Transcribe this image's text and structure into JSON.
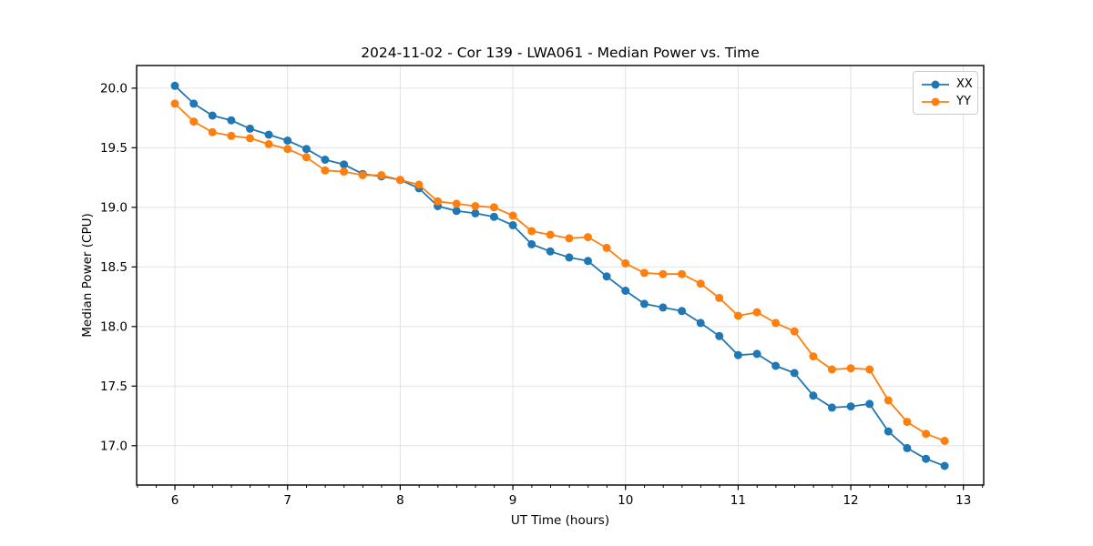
{
  "chart_data": {
    "type": "line",
    "title": "2024-11-02 - Cor 139 - LWA061 - Median Power vs. Time",
    "xlabel": "UT Time (hours)",
    "ylabel": "Median Power (CPU)",
    "xlim": [
      5.66,
      13.18
    ],
    "ylim": [
      16.67,
      20.19
    ],
    "x_major_ticks": [
      6,
      7,
      8,
      9,
      10,
      11,
      12,
      13
    ],
    "x_minor_tick_interval": 0.1667,
    "y_ticks": [
      17.0,
      17.5,
      18.0,
      18.5,
      19.0,
      19.5,
      20.0
    ],
    "grid": true,
    "legend_position": "upper right",
    "marker": "circle",
    "x": [
      6.0,
      6.167,
      6.333,
      6.5,
      6.667,
      6.833,
      7.0,
      7.167,
      7.333,
      7.5,
      7.667,
      7.833,
      8.0,
      8.167,
      8.333,
      8.5,
      8.667,
      8.833,
      9.0,
      9.167,
      9.333,
      9.5,
      9.667,
      9.833,
      10.0,
      10.167,
      10.333,
      10.5,
      10.667,
      10.833,
      11.0,
      11.167,
      11.333,
      11.5,
      11.667,
      11.833,
      12.0,
      12.167,
      12.333,
      12.5,
      12.667,
      12.833
    ],
    "series": [
      {
        "name": "XX",
        "color": "#1f77b4",
        "values": [
          20.02,
          19.87,
          19.77,
          19.73,
          19.66,
          19.61,
          19.56,
          19.49,
          19.4,
          19.36,
          19.28,
          19.26,
          19.23,
          19.16,
          19.01,
          18.97,
          18.95,
          18.92,
          18.85,
          18.69,
          18.63,
          18.58,
          18.55,
          18.42,
          18.3,
          18.19,
          18.16,
          18.13,
          18.03,
          17.92,
          17.76,
          17.77,
          17.67,
          17.61,
          17.42,
          17.32,
          17.33,
          17.35,
          17.12,
          16.98,
          16.89,
          16.83
        ]
      },
      {
        "name": "YY",
        "color": "#ff7f0e",
        "values": [
          19.87,
          19.72,
          19.63,
          19.6,
          19.58,
          19.53,
          19.49,
          19.42,
          19.31,
          19.3,
          19.27,
          19.27,
          19.23,
          19.19,
          19.05,
          19.03,
          19.01,
          19.0,
          18.93,
          18.8,
          18.77,
          18.74,
          18.75,
          18.66,
          18.53,
          18.45,
          18.44,
          18.44,
          18.36,
          18.24,
          18.09,
          18.12,
          18.03,
          17.96,
          17.75,
          17.64,
          17.65,
          17.64,
          17.38,
          17.2,
          17.1,
          17.04
        ]
      }
    ]
  },
  "colors": {
    "background": "#ffffff",
    "grid": "#e2e2e2",
    "spine": "#000000",
    "tick": "#000000",
    "text": "#000000",
    "series_xx": "#1f77b4",
    "series_yy": "#ff7f0e"
  }
}
